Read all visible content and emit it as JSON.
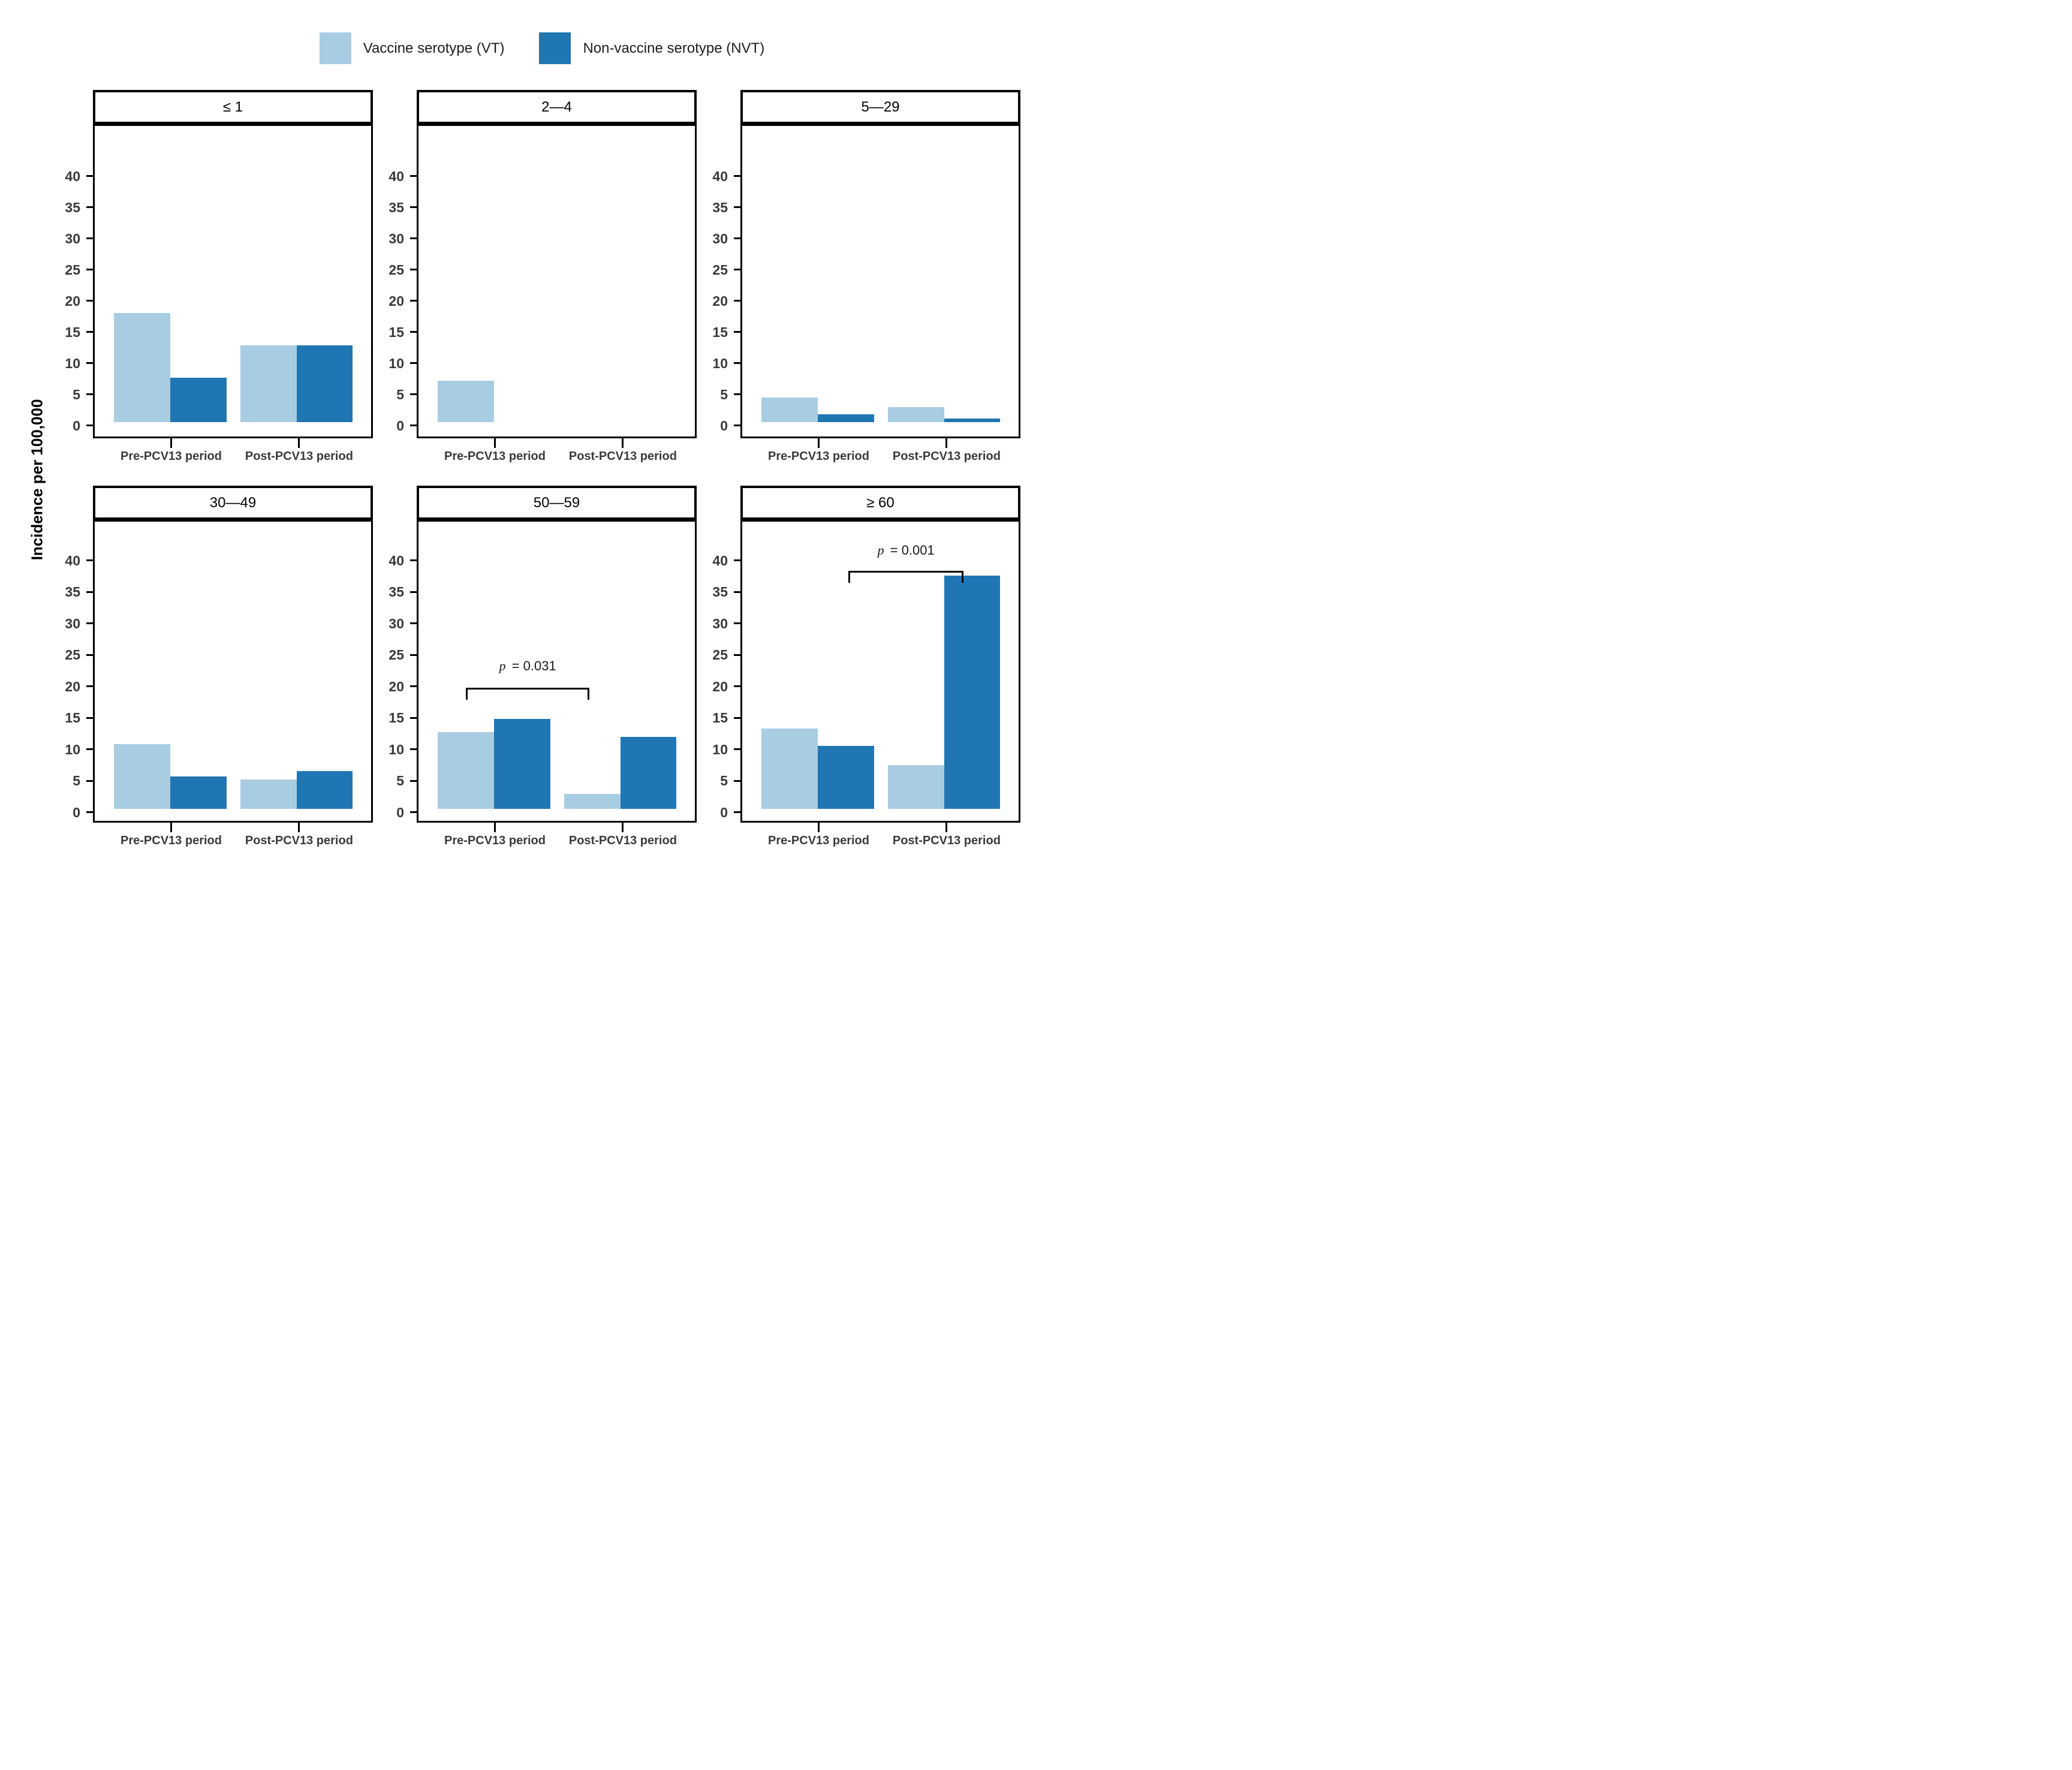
{
  "legend": {
    "items": [
      {
        "label": "Vaccine serotype (VT)",
        "color": "#a8cde3"
      },
      {
        "label": "Non-vaccine serotype (NVT)",
        "color": "#2076b2"
      }
    ]
  },
  "y_axis": {
    "title": "Incidence per 100,000",
    "ticks": [
      0,
      5,
      10,
      15,
      20,
      25,
      30,
      35,
      40
    ]
  },
  "x_axis": {
    "categories": [
      "Pre-PCV13 period",
      "Post-PCV13 period"
    ]
  },
  "chart_data": {
    "type": "bar",
    "title": "",
    "ylabel": "Incidence per 100,000",
    "ylim": [
      0,
      46
    ],
    "yticks": [
      0,
      5,
      10,
      15,
      20,
      25,
      30,
      35,
      40
    ],
    "grid": false,
    "legend_position": "top-center",
    "categories": [
      "Pre-PCV13 period",
      "Post-PCV13 period"
    ],
    "series_colors": {
      "VT": "#a8cde3",
      "NVT": "#2076b2"
    },
    "facets": [
      {
        "title": "≤ 1",
        "series": [
          {
            "name": "Vaccine serotype (VT)",
            "values": [
              17.5,
              12.3
            ]
          },
          {
            "name": "Non-vaccine serotype (NVT)",
            "values": [
              7.1,
              12.3
            ]
          }
        ],
        "annotation": null
      },
      {
        "title": "2—4",
        "series": [
          {
            "name": "Vaccine serotype (VT)",
            "values": [
              6.6,
              0
            ]
          },
          {
            "name": "Non-vaccine serotype (NVT)",
            "values": [
              0,
              0
            ]
          }
        ],
        "annotation": null
      },
      {
        "title": "5—29",
        "series": [
          {
            "name": "Vaccine serotype (VT)",
            "values": [
              3.9,
              2.4
            ]
          },
          {
            "name": "Non-vaccine serotype (NVT)",
            "values": [
              1.2,
              0.5
            ]
          }
        ],
        "annotation": null
      },
      {
        "title": "30—49",
        "series": [
          {
            "name": "Vaccine serotype (VT)",
            "values": [
              10.2,
              4.6
            ]
          },
          {
            "name": "Non-vaccine serotype (NVT)",
            "values": [
              5.1,
              6.0
            ]
          }
        ],
        "annotation": null
      },
      {
        "title": "50—59",
        "series": [
          {
            "name": "Vaccine serotype (VT)",
            "values": [
              12.1,
              2.3
            ]
          },
          {
            "name": "Non-vaccine serotype (NVT)",
            "values": [
              14.2,
              11.4
            ]
          }
        ],
        "annotation": {
          "label_italic": "p",
          "label_rest": " = 0.031",
          "compares": "VT Pre-PCV13 vs VT Post-PCV13",
          "bracket": {
            "from_frac": 0.17,
            "to_frac": 0.61,
            "y_value": 19.8
          },
          "text_y_value": 23.2
        }
      },
      {
        "title": "≥ 60",
        "series": [
          {
            "name": "Vaccine serotype (VT)",
            "values": [
              12.7,
              6.9
            ]
          },
          {
            "name": "Non-vaccine serotype (NVT)",
            "values": [
              10.0,
              37.0
            ]
          }
        ],
        "annotation": {
          "label_italic": "p",
          "label_rest": " = 0.001",
          "compares": "NVT Pre-PCV13 vs NVT Post-PCV13",
          "bracket": {
            "from_frac": 0.38,
            "to_frac": 0.79,
            "y_value": 38.3
          },
          "text_y_value": 41.6
        }
      }
    ]
  }
}
